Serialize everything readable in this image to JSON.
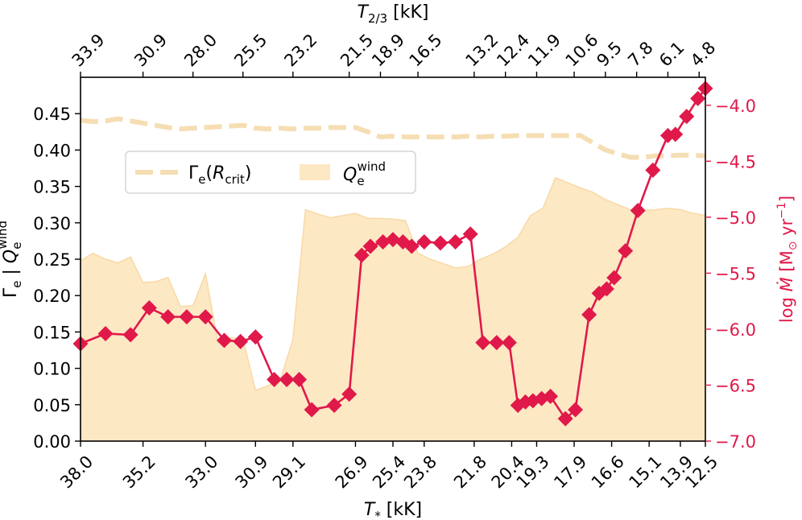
{
  "chart_data": {
    "type": "line",
    "title": "",
    "xlabel": "T* [kK]",
    "xlabel_top": "T2/3 [kK]",
    "ylabel": "Γe | Qe^wind",
    "ylabel_right": "log Ṁ [M⊙ yr−1]",
    "ylim": [
      0.0,
      0.5
    ],
    "ylim_right": [
      -7.0,
      -3.75
    ],
    "xlim": [
      0,
      50
    ],
    "yticks": [
      "0.00",
      "0.05",
      "0.10",
      "0.15",
      "0.20",
      "0.25",
      "0.30",
      "0.35",
      "0.40",
      "0.45"
    ],
    "yticks_right": [
      "−4.0",
      "−4.5",
      "−5.0",
      "−5.5",
      "−6.0",
      "−6.5",
      "−7.0"
    ],
    "xticks_bottom": [
      {
        "pos": 0,
        "label": "38.0"
      },
      {
        "pos": 5,
        "label": "35.2"
      },
      {
        "pos": 10,
        "label": "33.0"
      },
      {
        "pos": 14,
        "label": "30.9"
      },
      {
        "pos": 17,
        "label": "29.1"
      },
      {
        "pos": 22,
        "label": "26.9"
      },
      {
        "pos": 25,
        "label": "25.4"
      },
      {
        "pos": 27.5,
        "label": "23.8"
      },
      {
        "pos": 31.5,
        "label": "21.8"
      },
      {
        "pos": 34.5,
        "label": "20.4"
      },
      {
        "pos": 36.5,
        "label": "19.3"
      },
      {
        "pos": 39.5,
        "label": "17.9"
      },
      {
        "pos": 42.5,
        "label": "16.6"
      },
      {
        "pos": 45.5,
        "label": "15.1"
      },
      {
        "pos": 48,
        "label": "13.9"
      },
      {
        "pos": 50,
        "label": "12.5"
      }
    ],
    "xticks_top": [
      {
        "pos": 0,
        "label": "33.9"
      },
      {
        "pos": 5,
        "label": "30.9"
      },
      {
        "pos": 9,
        "label": "28.0"
      },
      {
        "pos": 13,
        "label": "25.5"
      },
      {
        "pos": 17,
        "label": "23.2"
      },
      {
        "pos": 21.5,
        "label": "21.5"
      },
      {
        "pos": 24,
        "label": "18.9"
      },
      {
        "pos": 27,
        "label": "16.5"
      },
      {
        "pos": 31.5,
        "label": "13.2"
      },
      {
        "pos": 34,
        "label": "12.4"
      },
      {
        "pos": 36.5,
        "label": "11.9"
      },
      {
        "pos": 39.5,
        "label": "10.6"
      },
      {
        "pos": 42,
        "label": "9.5"
      },
      {
        "pos": 44.5,
        "label": "7.8"
      },
      {
        "pos": 47,
        "label": "6.1"
      },
      {
        "pos": 49.5,
        "label": "4.8"
      }
    ],
    "legend": {
      "position": "upper-left",
      "entries": [
        "Γe(Rcrit)",
        "Qe^wind"
      ]
    },
    "series": [
      {
        "name": "Γe(Rcrit)",
        "style": "dashed",
        "color": "#f5deb3",
        "x": [
          0,
          1,
          2,
          3,
          4,
          5,
          6,
          7,
          8,
          9,
          10,
          11,
          12,
          13,
          14,
          15,
          16,
          17,
          18,
          19,
          20,
          21,
          22,
          23,
          24,
          25,
          26,
          27,
          28,
          29,
          30,
          31,
          32,
          33,
          34,
          35,
          36,
          37,
          38,
          39,
          40,
          41,
          42,
          43,
          44,
          45,
          46,
          47,
          48,
          49,
          50
        ],
        "values": [
          0.441,
          0.439,
          0.44,
          0.443,
          0.44,
          0.437,
          0.434,
          0.431,
          0.429,
          0.43,
          0.431,
          0.432,
          0.433,
          0.434,
          0.43,
          0.429,
          0.43,
          0.429,
          0.43,
          0.43,
          0.431,
          0.431,
          0.431,
          0.425,
          0.418,
          0.419,
          0.418,
          0.418,
          0.418,
          0.418,
          0.418,
          0.419,
          0.418,
          0.419,
          0.419,
          0.42,
          0.42,
          0.42,
          0.42,
          0.42,
          0.42,
          0.41,
          0.4,
          0.395,
          0.39,
          0.39,
          0.392,
          0.392,
          0.393,
          0.393,
          0.392
        ]
      },
      {
        "name": "Qe^wind",
        "style": "area",
        "color": "#fde8c4",
        "x": [
          0,
          1,
          2,
          3,
          4,
          5,
          6,
          7,
          8,
          9,
          10,
          11,
          12,
          13,
          14,
          15,
          16,
          17,
          18,
          19,
          20,
          21,
          22,
          23,
          24,
          25,
          26,
          27,
          28,
          29,
          30,
          31,
          32,
          33,
          34,
          35,
          36,
          37,
          38,
          39,
          40,
          41,
          42,
          43,
          44,
          45,
          46,
          47,
          48,
          49,
          50
        ],
        "values": [
          0.248,
          0.258,
          0.25,
          0.245,
          0.253,
          0.218,
          0.219,
          0.225,
          0.185,
          0.186,
          0.23,
          0.135,
          0.142,
          0.14,
          0.07,
          0.076,
          0.085,
          0.14,
          0.318,
          0.312,
          0.307,
          0.31,
          0.313,
          0.306,
          0.306,
          0.305,
          0.303,
          0.258,
          0.25,
          0.244,
          0.238,
          0.24,
          0.25,
          0.257,
          0.267,
          0.28,
          0.31,
          0.32,
          0.362,
          0.355,
          0.348,
          0.342,
          0.332,
          0.325,
          0.318,
          0.317,
          0.318,
          0.32,
          0.318,
          0.313,
          0.31
        ]
      },
      {
        "name": "log Ṁ",
        "style": "line-markers",
        "color": "#e0194a",
        "axis": "right",
        "x": [
          0,
          2,
          4,
          5.5,
          7,
          8.5,
          10,
          11.5,
          12.8,
          14,
          15.5,
          16.5,
          17.5,
          18.5,
          20.3,
          21.5,
          22.5,
          23.2,
          24.2,
          25,
          25.8,
          26.5,
          27.5,
          28.8,
          30,
          31.2,
          32.2,
          33.3,
          34.3,
          35,
          35.6,
          36.2,
          36.9,
          37.6,
          38.8,
          39.6,
          40.7,
          41.5,
          42.1,
          42.7,
          43.6,
          44.6,
          45.8,
          47,
          47.6,
          48.5,
          49.4,
          50
        ],
        "values": [
          -6.13,
          -6.04,
          -6.05,
          -5.81,
          -5.89,
          -5.89,
          -5.89,
          -6.1,
          -6.11,
          -6.07,
          -6.45,
          -6.45,
          -6.45,
          -6.72,
          -6.68,
          -6.58,
          -5.34,
          -5.26,
          -5.22,
          -5.2,
          -5.22,
          -5.26,
          -5.22,
          -5.23,
          -5.22,
          -5.15,
          -6.12,
          -6.12,
          -6.12,
          -6.68,
          -6.65,
          -6.64,
          -6.62,
          -6.6,
          -6.8,
          -6.72,
          -5.87,
          -5.68,
          -5.64,
          -5.54,
          -5.3,
          -4.94,
          -4.58,
          -4.27,
          -4.26,
          -4.1,
          -3.94,
          -3.85
        ]
      }
    ]
  }
}
